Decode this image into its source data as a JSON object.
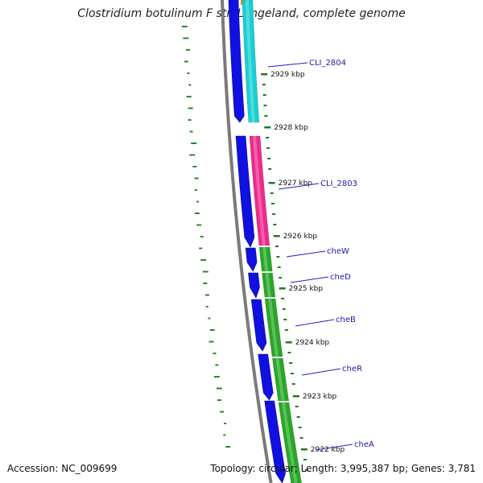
{
  "title": "Clostridium botulinum F str. Langeland, complete genome",
  "footer": {
    "accession": "Accession: NC_009699",
    "summary": "Topology: circular; Length: 3,995,387 bp; Genes: 3,781"
  },
  "colors": {
    "backbone": "#7a7a7a",
    "strand_arrow": "#1010e0",
    "tick": "#1f7a1f",
    "gc_dots": "#2a8a2a",
    "label_line": "#2222bb"
  },
  "kbp_ticks": [
    {
      "label": "2929 kbp"
    },
    {
      "label": "2928 kbp"
    },
    {
      "label": "2927 kbp"
    },
    {
      "label": "2926 kbp"
    },
    {
      "label": "2925 kbp"
    },
    {
      "label": "2924 kbp"
    },
    {
      "label": "2923 kbp"
    },
    {
      "label": "2922 kbp"
    }
  ],
  "genes": [
    {
      "name": "CLI_2804",
      "color": "#18cfd2"
    },
    {
      "name": "CLI_2803",
      "color": "#ee2a8c"
    },
    {
      "name": "cheW",
      "color": "#27a827"
    },
    {
      "name": "cheD",
      "color": "#27a827"
    },
    {
      "name": "cheB",
      "color": "#27a827"
    },
    {
      "name": "cheR",
      "color": "#27a827"
    },
    {
      "name": "cheA",
      "color": "#27a827"
    }
  ]
}
